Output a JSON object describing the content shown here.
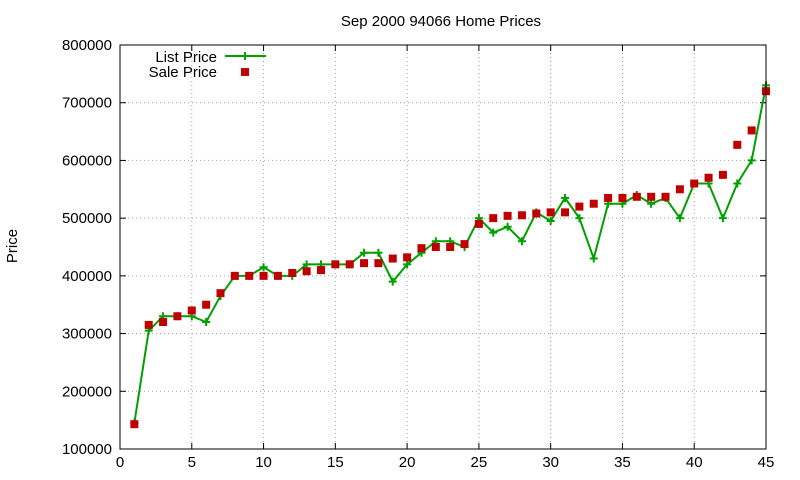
{
  "chart_data": {
    "type": "line",
    "title": "Sep 2000 94066 Home Prices",
    "xlabel": "",
    "ylabel": "Price",
    "xlim": [
      0,
      45
    ],
    "ylim": [
      100000,
      800000
    ],
    "xticks": [
      0,
      5,
      10,
      15,
      20,
      25,
      30,
      35,
      40,
      45
    ],
    "yticks": [
      100000,
      200000,
      300000,
      400000,
      500000,
      600000,
      700000,
      800000
    ],
    "grid": true,
    "legend": "top-left",
    "x": [
      1,
      2,
      3,
      4,
      5,
      6,
      7,
      8,
      9,
      10,
      11,
      12,
      13,
      14,
      15,
      16,
      17,
      18,
      19,
      20,
      21,
      22,
      23,
      24,
      25,
      26,
      27,
      28,
      29,
      30,
      31,
      32,
      33,
      34,
      35,
      36,
      37,
      38,
      39,
      40,
      41,
      42,
      43,
      44,
      45
    ],
    "series": [
      {
        "name": "List Price",
        "style": "line+cross",
        "color": "#00a000",
        "values": [
          145000,
          305000,
          330000,
          330000,
          330000,
          320000,
          365000,
          400000,
          400000,
          415000,
          400000,
          400000,
          420000,
          420000,
          420000,
          420000,
          440000,
          440000,
          390000,
          420000,
          440000,
          460000,
          460000,
          450000,
          500000,
          475000,
          485000,
          460000,
          510000,
          495000,
          535000,
          500000,
          430000,
          525000,
          525000,
          540000,
          525000,
          535000,
          500000,
          560000,
          560000,
          500000,
          560000,
          600000,
          730000
        ]
      },
      {
        "name": "Sale Price",
        "style": "square",
        "color": "#c00000",
        "values": [
          143000,
          315000,
          320000,
          330000,
          340000,
          350000,
          370000,
          400000,
          400000,
          400000,
          400000,
          405000,
          408000,
          410000,
          420000,
          420000,
          422000,
          422000,
          430000,
          432000,
          448000,
          450000,
          450000,
          455000,
          490000,
          500000,
          504000,
          505000,
          508000,
          510000,
          510000,
          520000,
          525000,
          535000,
          535000,
          537000,
          537000,
          537000,
          550000,
          560000,
          570000,
          575000,
          627000,
          652000,
          720000
        ]
      }
    ]
  }
}
